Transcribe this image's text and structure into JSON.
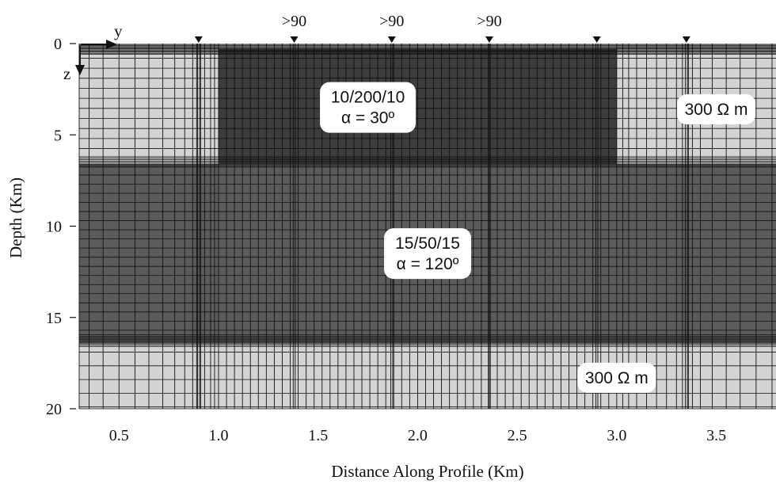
{
  "chart_data": {
    "type": "mesh-section",
    "xlabel": "Distance Along Profile (Km)",
    "ylabel": "Depth (Km)",
    "xlim": [
      0.3,
      3.8
    ],
    "ylim": [
      0,
      20
    ],
    "x_ticks": [
      "0.5",
      "1.0",
      "1.5",
      "2.0",
      "2.5",
      "3.0",
      "3.5"
    ],
    "x_tick_values": [
      0.5,
      1.0,
      1.5,
      2.0,
      2.5,
      3.0,
      3.5
    ],
    "y_ticks": [
      "0",
      "5",
      "10",
      "15",
      "20"
    ],
    "y_tick_values": [
      0,
      5,
      10,
      15,
      20
    ],
    "station_x": [
      0.9,
      1.38,
      1.87,
      2.36,
      2.9,
      3.35
    ],
    "station_labels": [
      {
        "x": 1.38,
        "text": ">90"
      },
      {
        "x": 1.87,
        "text": ">90"
      },
      {
        "x": 2.36,
        "text": ">90"
      }
    ],
    "regions": [
      {
        "name": "host-background",
        "x0": 0.3,
        "x1": 3.8,
        "z0": 0.3,
        "z1": 20,
        "color": "#d3d3d3"
      },
      {
        "name": "upper-body",
        "x0": 1.0,
        "x1": 3.0,
        "z0": 0.3,
        "z1": 6.6,
        "color": "#3d3d3d"
      },
      {
        "name": "lower-layer",
        "x0": 0.3,
        "x1": 3.8,
        "z0": 6.6,
        "z1": 16.4,
        "color": "#5b5b5b"
      }
    ],
    "labels": [
      {
        "lines": [
          "10/200/10",
          "α = 30º"
        ],
        "x": 1.75,
        "z": 3.5
      },
      {
        "lines": [
          "15/50/15",
          "α = 120º"
        ],
        "x": 2.05,
        "z": 11.5
      },
      {
        "lines": [
          "300 Ω m"
        ],
        "x": 3.5,
        "z": 3.6
      },
      {
        "lines": [
          "300 Ω m"
        ],
        "x": 3.0,
        "z": 18.3
      }
    ],
    "coordinate_axes": {
      "horizontal": "y",
      "vertical": "z"
    }
  }
}
